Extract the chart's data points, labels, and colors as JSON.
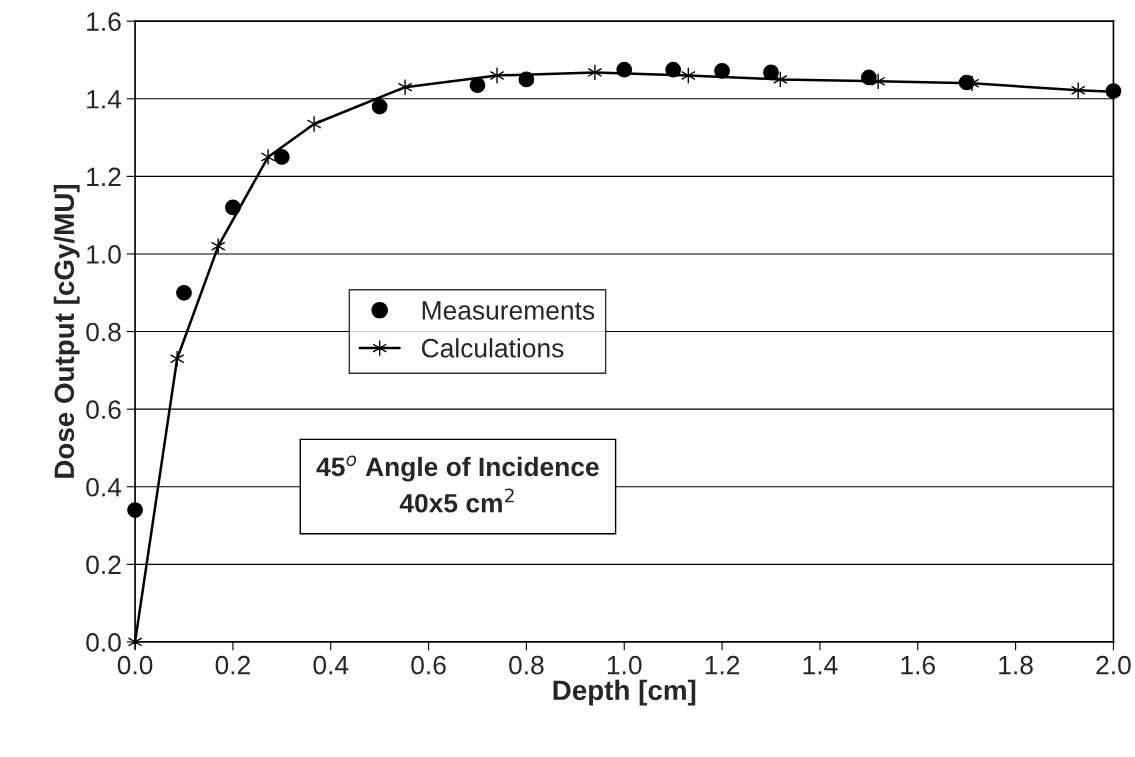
{
  "chart_data": {
    "type": "scatter",
    "xlabel": "Depth [cm]",
    "ylabel": "Dose Output [cGy/MU]",
    "xlim": [
      0.0,
      2.0
    ],
    "xticks": [
      {
        "value": 0,
        "label": "0.0"
      },
      0.2,
      0.4,
      0.6,
      0.8,
      {
        "value": 1,
        "label": "1.0"
      },
      1.2,
      1.4,
      1.6,
      1.8,
      {
        "value": 2,
        "label": "2.0"
      }
    ],
    "ylim": [
      0.0,
      1.6
    ],
    "yticks": [
      {
        "value": 0,
        "label": "0.0"
      },
      0.2,
      0.4,
      0.6,
      0.8,
      {
        "value": 1,
        "label": "1.0"
      },
      1.2,
      1.4,
      1.6
    ],
    "grid": "y",
    "legend": "center",
    "annotations": [
      "45$^{o}$ Angle of Incidence\n40x5 cm$^{2}$"
    ],
    "series": [
      {
        "name": "Measurements",
        "marker": "circle",
        "color": "#000000",
        "x": [
          0.0,
          0.1,
          0.2,
          0.3,
          0.5,
          0.7,
          0.8,
          1.0,
          1.1,
          1.2,
          1.3,
          1.5,
          1.7,
          2.0
        ],
        "values": [
          0.34,
          0.9,
          1.12,
          1.25,
          1.38,
          1.435,
          1.45,
          1.475,
          1.475,
          1.472,
          1.468,
          1.455,
          1.442,
          1.42
        ]
      },
      {
        "name": "Calculations",
        "type": "line",
        "marker": "cross",
        "line_style": "solid",
        "color": "#000000",
        "x": [
          0.0,
          0.086,
          0.17,
          0.272,
          0.366,
          0.552,
          0.74,
          0.94,
          1.131,
          1.319,
          1.519,
          1.711,
          1.928,
          2.0
        ],
        "values": [
          0.0,
          0.73,
          1.02,
          1.25,
          1.335,
          1.43,
          1.46,
          1.468,
          1.46,
          1.45,
          1.445,
          1.44,
          1.422,
          1.418
        ]
      }
    ]
  }
}
